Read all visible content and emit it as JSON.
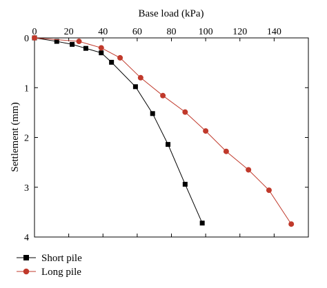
{
  "chart_data": {
    "type": "line",
    "xlabel": "Base load (kPa)",
    "ylabel": "Settlement (mm)",
    "xlim": [
      0,
      160
    ],
    "ylim": [
      0,
      4
    ],
    "y_inverted": true,
    "x_axis_position": "top",
    "x_ticks": [
      0,
      20,
      40,
      60,
      80,
      100,
      120,
      140
    ],
    "y_ticks": [
      0,
      1,
      2,
      3,
      4
    ],
    "grid": false,
    "legend_position": "bottom-left",
    "series": [
      {
        "name": "Short pile",
        "color": "#000000",
        "marker": "square",
        "x": [
          0,
          13,
          22,
          30,
          39,
          45,
          59,
          69,
          78,
          88,
          98
        ],
        "y": [
          0,
          0.07,
          0.13,
          0.21,
          0.3,
          0.49,
          0.98,
          1.52,
          2.14,
          2.94,
          3.72
        ]
      },
      {
        "name": "Long pile",
        "color": "#c0392b",
        "marker": "circle",
        "x": [
          0,
          26,
          39,
          50,
          62,
          75,
          88,
          100,
          112,
          125,
          137,
          150
        ],
        "y": [
          0,
          0.07,
          0.2,
          0.4,
          0.8,
          1.16,
          1.49,
          1.87,
          2.28,
          2.65,
          3.06,
          3.74
        ]
      }
    ]
  }
}
